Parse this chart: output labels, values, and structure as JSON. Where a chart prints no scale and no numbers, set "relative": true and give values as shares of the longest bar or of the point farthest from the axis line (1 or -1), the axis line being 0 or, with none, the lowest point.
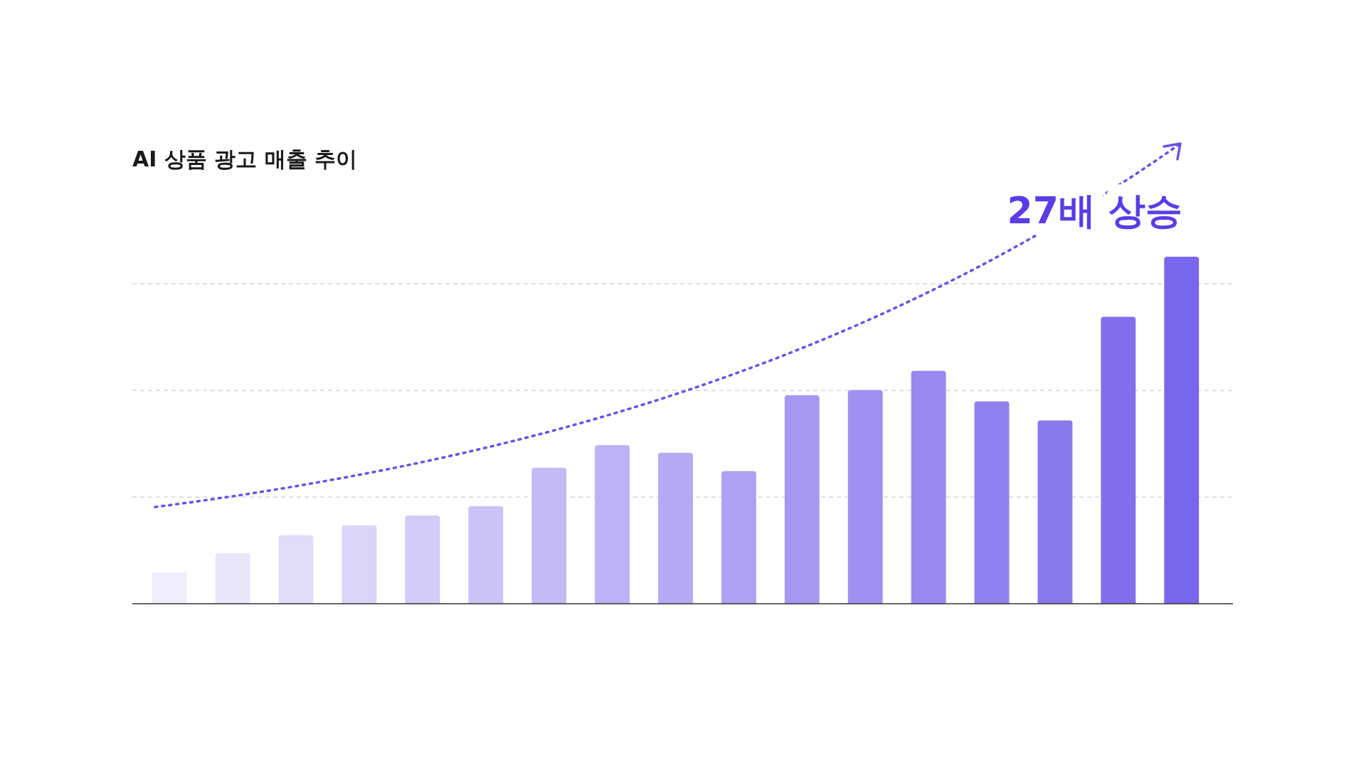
{
  "chart_data": {
    "type": "bar",
    "title": "AI 상품 광고 매출 추이",
    "relative": true,
    "grid": "y",
    "categories": [
      null,
      null,
      null,
      null,
      null,
      null,
      null,
      null,
      null,
      null,
      null,
      null,
      null,
      null,
      null,
      null,
      null
    ],
    "values": [
      0.09,
      0.146,
      0.198,
      0.226,
      0.254,
      0.281,
      0.392,
      0.457,
      0.435,
      0.382,
      0.601,
      0.616,
      0.671,
      0.583,
      0.528,
      0.827,
      1
    ],
    "colors": [
      "#f0edfc",
      "#e9e5fb",
      "#e1dcfa",
      "#dad4f9",
      "#d3cbf8",
      "#cbc3f7",
      "#c4baf6",
      "#bcb2f5",
      "#b5a9f4",
      "#aea1f3",
      "#a698f2",
      "#9f90f1",
      "#9888f0",
      "#907fef",
      "#8977ee",
      "#826eed",
      "#7a66ec"
    ],
    "annotations": [
      "27배 상승"
    ]
  }
}
